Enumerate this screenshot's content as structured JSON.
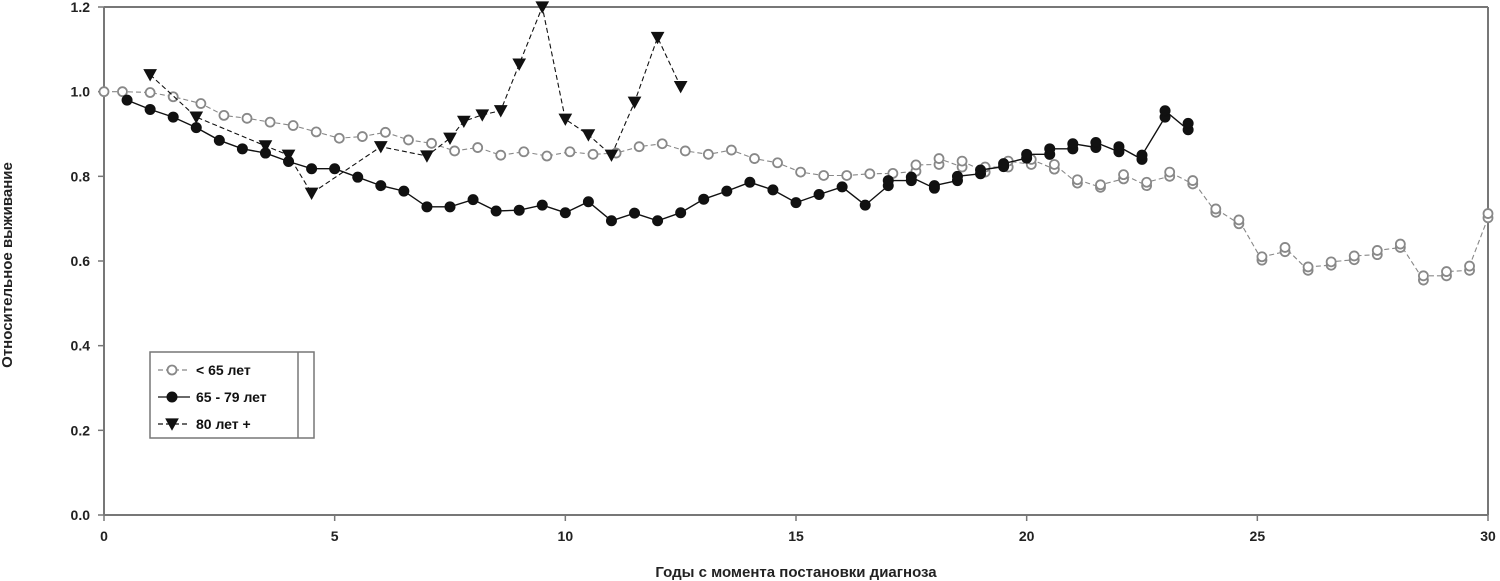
{
  "chart_data": {
    "type": "line",
    "xlabel": "Годы с момента постановки диагноза",
    "ylabel": "Относительное выживание",
    "xlim": [
      0,
      30
    ],
    "ylim": [
      0,
      1.2
    ],
    "x_ticks": [
      "0",
      "5",
      "10",
      "15",
      "20",
      "25",
      "30"
    ],
    "y_ticks": [
      "0.0",
      "0.2",
      "0.4",
      "0.6",
      "0.8",
      "1.0",
      "1.2"
    ],
    "grid": false,
    "legend_position": "lower-left",
    "series": [
      {
        "name": "< 65 лет",
        "marker": "open-circle",
        "line": "dashed",
        "color": "#888888",
        "points": [
          [
            0,
            1.0
          ],
          [
            0.4,
            1.0
          ],
          [
            1.0,
            0.998
          ],
          [
            1.5,
            0.988
          ],
          [
            2.1,
            0.972
          ],
          [
            2.6,
            0.944
          ],
          [
            3.1,
            0.937
          ],
          [
            3.6,
            0.928
          ],
          [
            4.1,
            0.92
          ],
          [
            4.6,
            0.905
          ],
          [
            5.1,
            0.89
          ],
          [
            5.6,
            0.894
          ],
          [
            6.1,
            0.904
          ],
          [
            6.6,
            0.886
          ],
          [
            7.1,
            0.878
          ],
          [
            7.6,
            0.86
          ],
          [
            8.1,
            0.868
          ],
          [
            8.6,
            0.85
          ],
          [
            9.1,
            0.858
          ],
          [
            9.6,
            0.848
          ],
          [
            10.1,
            0.858
          ],
          [
            10.6,
            0.852
          ],
          [
            11.1,
            0.855
          ],
          [
            11.6,
            0.87
          ],
          [
            12.1,
            0.877
          ],
          [
            12.6,
            0.86
          ],
          [
            13.1,
            0.852
          ],
          [
            13.6,
            0.862
          ],
          [
            14.1,
            0.842
          ],
          [
            14.6,
            0.832
          ],
          [
            15.1,
            0.81
          ],
          [
            15.6,
            0.802
          ],
          [
            16.1,
            0.802
          ],
          [
            16.6,
            0.806
          ],
          [
            17.1,
            0.807
          ],
          [
            17.6,
            0.812
          ],
          [
            17.6,
            0.827
          ],
          [
            18.1,
            0.828
          ],
          [
            18.1,
            0.842
          ],
          [
            18.6,
            0.822
          ],
          [
            18.6,
            0.836
          ],
          [
            19.1,
            0.81
          ],
          [
            19.1,
            0.822
          ],
          [
            19.6,
            0.822
          ],
          [
            19.6,
            0.836
          ],
          [
            20.1,
            0.828
          ],
          [
            20.1,
            0.84
          ],
          [
            20.6,
            0.817
          ],
          [
            20.6,
            0.828
          ],
          [
            21.1,
            0.784
          ],
          [
            21.1,
            0.792
          ],
          [
            21.6,
            0.774
          ],
          [
            21.6,
            0.78
          ],
          [
            22.1,
            0.794
          ],
          [
            22.1,
            0.804
          ],
          [
            22.6,
            0.778
          ],
          [
            22.6,
            0.786
          ],
          [
            23.1,
            0.8
          ],
          [
            23.1,
            0.81
          ],
          [
            23.6,
            0.782
          ],
          [
            23.6,
            0.79
          ],
          [
            24.1,
            0.715
          ],
          [
            24.1,
            0.723
          ],
          [
            24.6,
            0.688
          ],
          [
            24.6,
            0.697
          ],
          [
            25.1,
            0.602
          ],
          [
            25.1,
            0.61
          ],
          [
            25.6,
            0.622
          ],
          [
            25.6,
            0.632
          ],
          [
            26.1,
            0.578
          ],
          [
            26.1,
            0.586
          ],
          [
            26.6,
            0.59
          ],
          [
            26.6,
            0.598
          ],
          [
            27.1,
            0.603
          ],
          [
            27.1,
            0.612
          ],
          [
            27.6,
            0.615
          ],
          [
            27.6,
            0.625
          ],
          [
            28.1,
            0.632
          ],
          [
            28.1,
            0.64
          ],
          [
            28.6,
            0.555
          ],
          [
            28.6,
            0.565
          ],
          [
            29.1,
            0.565
          ],
          [
            29.1,
            0.575
          ],
          [
            29.6,
            0.578
          ],
          [
            29.6,
            0.588
          ],
          [
            30.0,
            0.702
          ],
          [
            30.0,
            0.712
          ]
        ]
      },
      {
        "name": "65 - 79 лет",
        "marker": "filled-circle",
        "line": "solid",
        "color": "#111111",
        "points": [
          [
            0.5,
            0.98
          ],
          [
            1.0,
            0.958
          ],
          [
            1.5,
            0.94
          ],
          [
            2.0,
            0.915
          ],
          [
            2.5,
            0.885
          ],
          [
            3.0,
            0.865
          ],
          [
            3.5,
            0.855
          ],
          [
            4.0,
            0.835
          ],
          [
            4.5,
            0.818
          ],
          [
            5.0,
            0.818
          ],
          [
            5.5,
            0.798
          ],
          [
            6.0,
            0.778
          ],
          [
            6.5,
            0.765
          ],
          [
            7.0,
            0.728
          ],
          [
            7.5,
            0.728
          ],
          [
            8.0,
            0.745
          ],
          [
            8.5,
            0.718
          ],
          [
            9.0,
            0.72
          ],
          [
            9.5,
            0.732
          ],
          [
            10.0,
            0.714
          ],
          [
            10.5,
            0.74
          ],
          [
            11.0,
            0.695
          ],
          [
            11.5,
            0.713
          ],
          [
            12.0,
            0.695
          ],
          [
            12.5,
            0.714
          ],
          [
            13.0,
            0.746
          ],
          [
            13.5,
            0.765
          ],
          [
            14.0,
            0.786
          ],
          [
            14.5,
            0.768
          ],
          [
            15.0,
            0.738
          ],
          [
            15.5,
            0.757
          ],
          [
            16.0,
            0.775
          ],
          [
            16.5,
            0.732
          ],
          [
            17.0,
            0.778
          ],
          [
            17.0,
            0.79
          ],
          [
            17.5,
            0.79
          ],
          [
            17.5,
            0.798
          ],
          [
            18.0,
            0.772
          ],
          [
            18.0,
            0.778
          ],
          [
            18.5,
            0.79
          ],
          [
            18.5,
            0.8
          ],
          [
            19.0,
            0.806
          ],
          [
            19.0,
            0.815
          ],
          [
            19.5,
            0.823
          ],
          [
            19.5,
            0.83
          ],
          [
            20.0,
            0.843
          ],
          [
            20.0,
            0.852
          ],
          [
            20.5,
            0.852
          ],
          [
            20.5,
            0.865
          ],
          [
            21.0,
            0.865
          ],
          [
            21.0,
            0.877
          ],
          [
            21.5,
            0.868
          ],
          [
            21.5,
            0.88
          ],
          [
            22.0,
            0.858
          ],
          [
            22.0,
            0.87
          ],
          [
            22.5,
            0.84
          ],
          [
            22.5,
            0.85
          ],
          [
            23.0,
            0.94
          ],
          [
            23.0,
            0.955
          ],
          [
            23.5,
            0.91
          ],
          [
            23.5,
            0.925
          ]
        ]
      },
      {
        "name": "80 лет +",
        "marker": "filled-triangle-down",
        "line": "dashed",
        "color": "#111111",
        "points": [
          [
            1.0,
            1.04
          ],
          [
            2.0,
            0.94
          ],
          [
            3.5,
            0.872
          ],
          [
            4.0,
            0.85
          ],
          [
            4.5,
            0.76
          ],
          [
            6.0,
            0.87
          ],
          [
            7.0,
            0.848
          ],
          [
            7.5,
            0.89
          ],
          [
            7.8,
            0.93
          ],
          [
            8.2,
            0.945
          ],
          [
            8.6,
            0.955
          ],
          [
            9.0,
            1.065
          ],
          [
            9.5,
            1.2
          ],
          [
            10.0,
            0.935
          ],
          [
            10.5,
            0.898
          ],
          [
            11.0,
            0.85
          ],
          [
            11.5,
            0.975
          ],
          [
            12.0,
            1.128
          ],
          [
            12.5,
            1.012
          ]
        ]
      }
    ]
  }
}
